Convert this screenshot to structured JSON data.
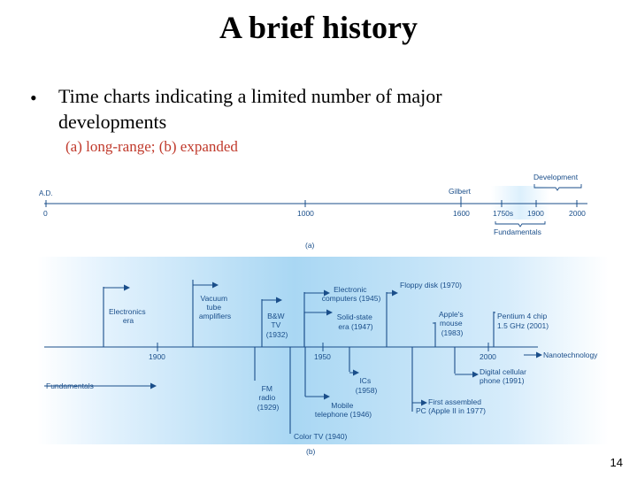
{
  "slide": {
    "title": "A brief history",
    "bullet": "Time charts indicating a limited number of major developments",
    "subbullet": "(a) long-range; (b) expanded",
    "page_number": "14"
  },
  "chart_a": {
    "label": "(a)",
    "axis_prefix": "A.D.",
    "ticks": [
      "0",
      "1000",
      "1600",
      "1750s",
      "1900",
      "2000"
    ],
    "gilbert": "Gilbert",
    "development": "Development",
    "fundamentals": "Fundamentals"
  },
  "chart_b": {
    "label": "(b)",
    "ticks": [
      "1900",
      "1950",
      "2000"
    ],
    "above": [
      {
        "id": "electronics-era",
        "lines": [
          "Electronics",
          "era"
        ]
      },
      {
        "id": "vacuum-tube",
        "lines": [
          "Vacuum",
          "tube",
          "amplifiers"
        ]
      },
      {
        "id": "bw-tv",
        "lines": [
          "B&W",
          "TV",
          "(1932)"
        ]
      },
      {
        "id": "electronic-computers",
        "lines": [
          "Electronic",
          "computers (1945)"
        ]
      },
      {
        "id": "solid-state",
        "lines": [
          "Solid-state",
          "era (1947)"
        ]
      },
      {
        "id": "floppy-disk",
        "lines": [
          "Floppy disk (1970)"
        ]
      },
      {
        "id": "apple-mouse",
        "lines": [
          "Apple's",
          "mouse",
          "(1983)"
        ]
      },
      {
        "id": "pentium",
        "lines": [
          "Pentium 4 chip",
          "1.5 GHz (2001)"
        ]
      }
    ],
    "nanotech": "Nanotechnology",
    "below": [
      {
        "id": "fundamentals",
        "lines": [
          "Fundamentals"
        ]
      },
      {
        "id": "fm-radio",
        "lines": [
          "FM",
          "radio",
          "(1929)"
        ]
      },
      {
        "id": "color-tv",
        "lines": [
          "Color TV (1940)"
        ]
      },
      {
        "id": "mobile-telephone",
        "lines": [
          "Mobile",
          "telephone (1946)"
        ]
      },
      {
        "id": "ics",
        "lines": [
          "ICs",
          "(1958)"
        ]
      },
      {
        "id": "first-pc",
        "lines": [
          "First assembled",
          "PC (Apple II in 1977)"
        ]
      },
      {
        "id": "digital-cellular",
        "lines": [
          "Digital cellular",
          "phone (1991)"
        ]
      }
    ]
  },
  "colors": {
    "text": "#000000",
    "subbullet": "#c0392b",
    "band_light": "#ffffff",
    "band_blue": "#a9d7f3",
    "figure_text": "#1a4e8a"
  }
}
